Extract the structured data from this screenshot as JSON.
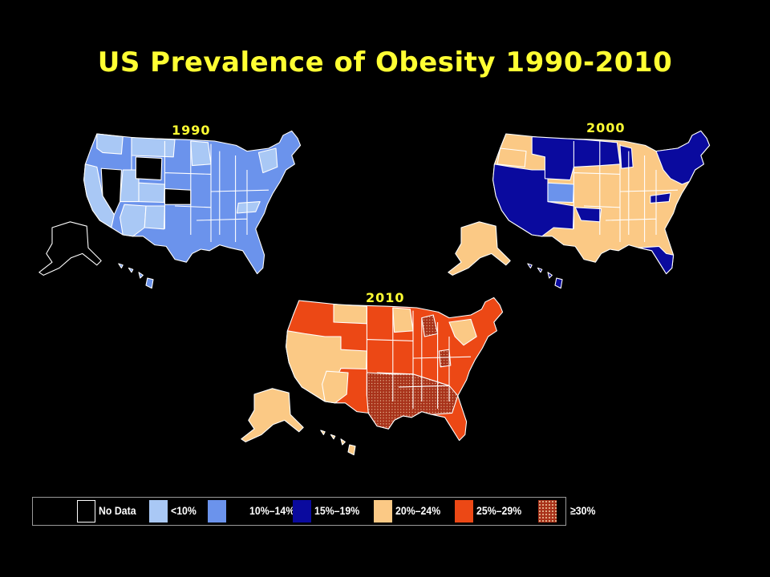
{
  "title": "US Prevalence of Obesity 1990-2010",
  "maps": [
    {
      "year": "1990"
    },
    {
      "year": "2000"
    },
    {
      "year": "2010"
    }
  ],
  "legend": [
    {
      "label": "No Data",
      "color": "#000000",
      "pattern": "none"
    },
    {
      "label": "<10%",
      "color": "#a9c8f5",
      "pattern": "none"
    },
    {
      "label": "10%–14%",
      "color": "#6b93ec",
      "pattern": "none"
    },
    {
      "label": "15%–19%",
      "color": "#0a0a9e",
      "pattern": "none"
    },
    {
      "label": "20%–24%",
      "color": "#fbc985",
      "pattern": "none"
    },
    {
      "label": "25%–29%",
      "color": "#ec4815",
      "pattern": "none"
    },
    {
      "label": "≥30%",
      "color": "#a8321a",
      "pattern": "dotted"
    }
  ]
}
